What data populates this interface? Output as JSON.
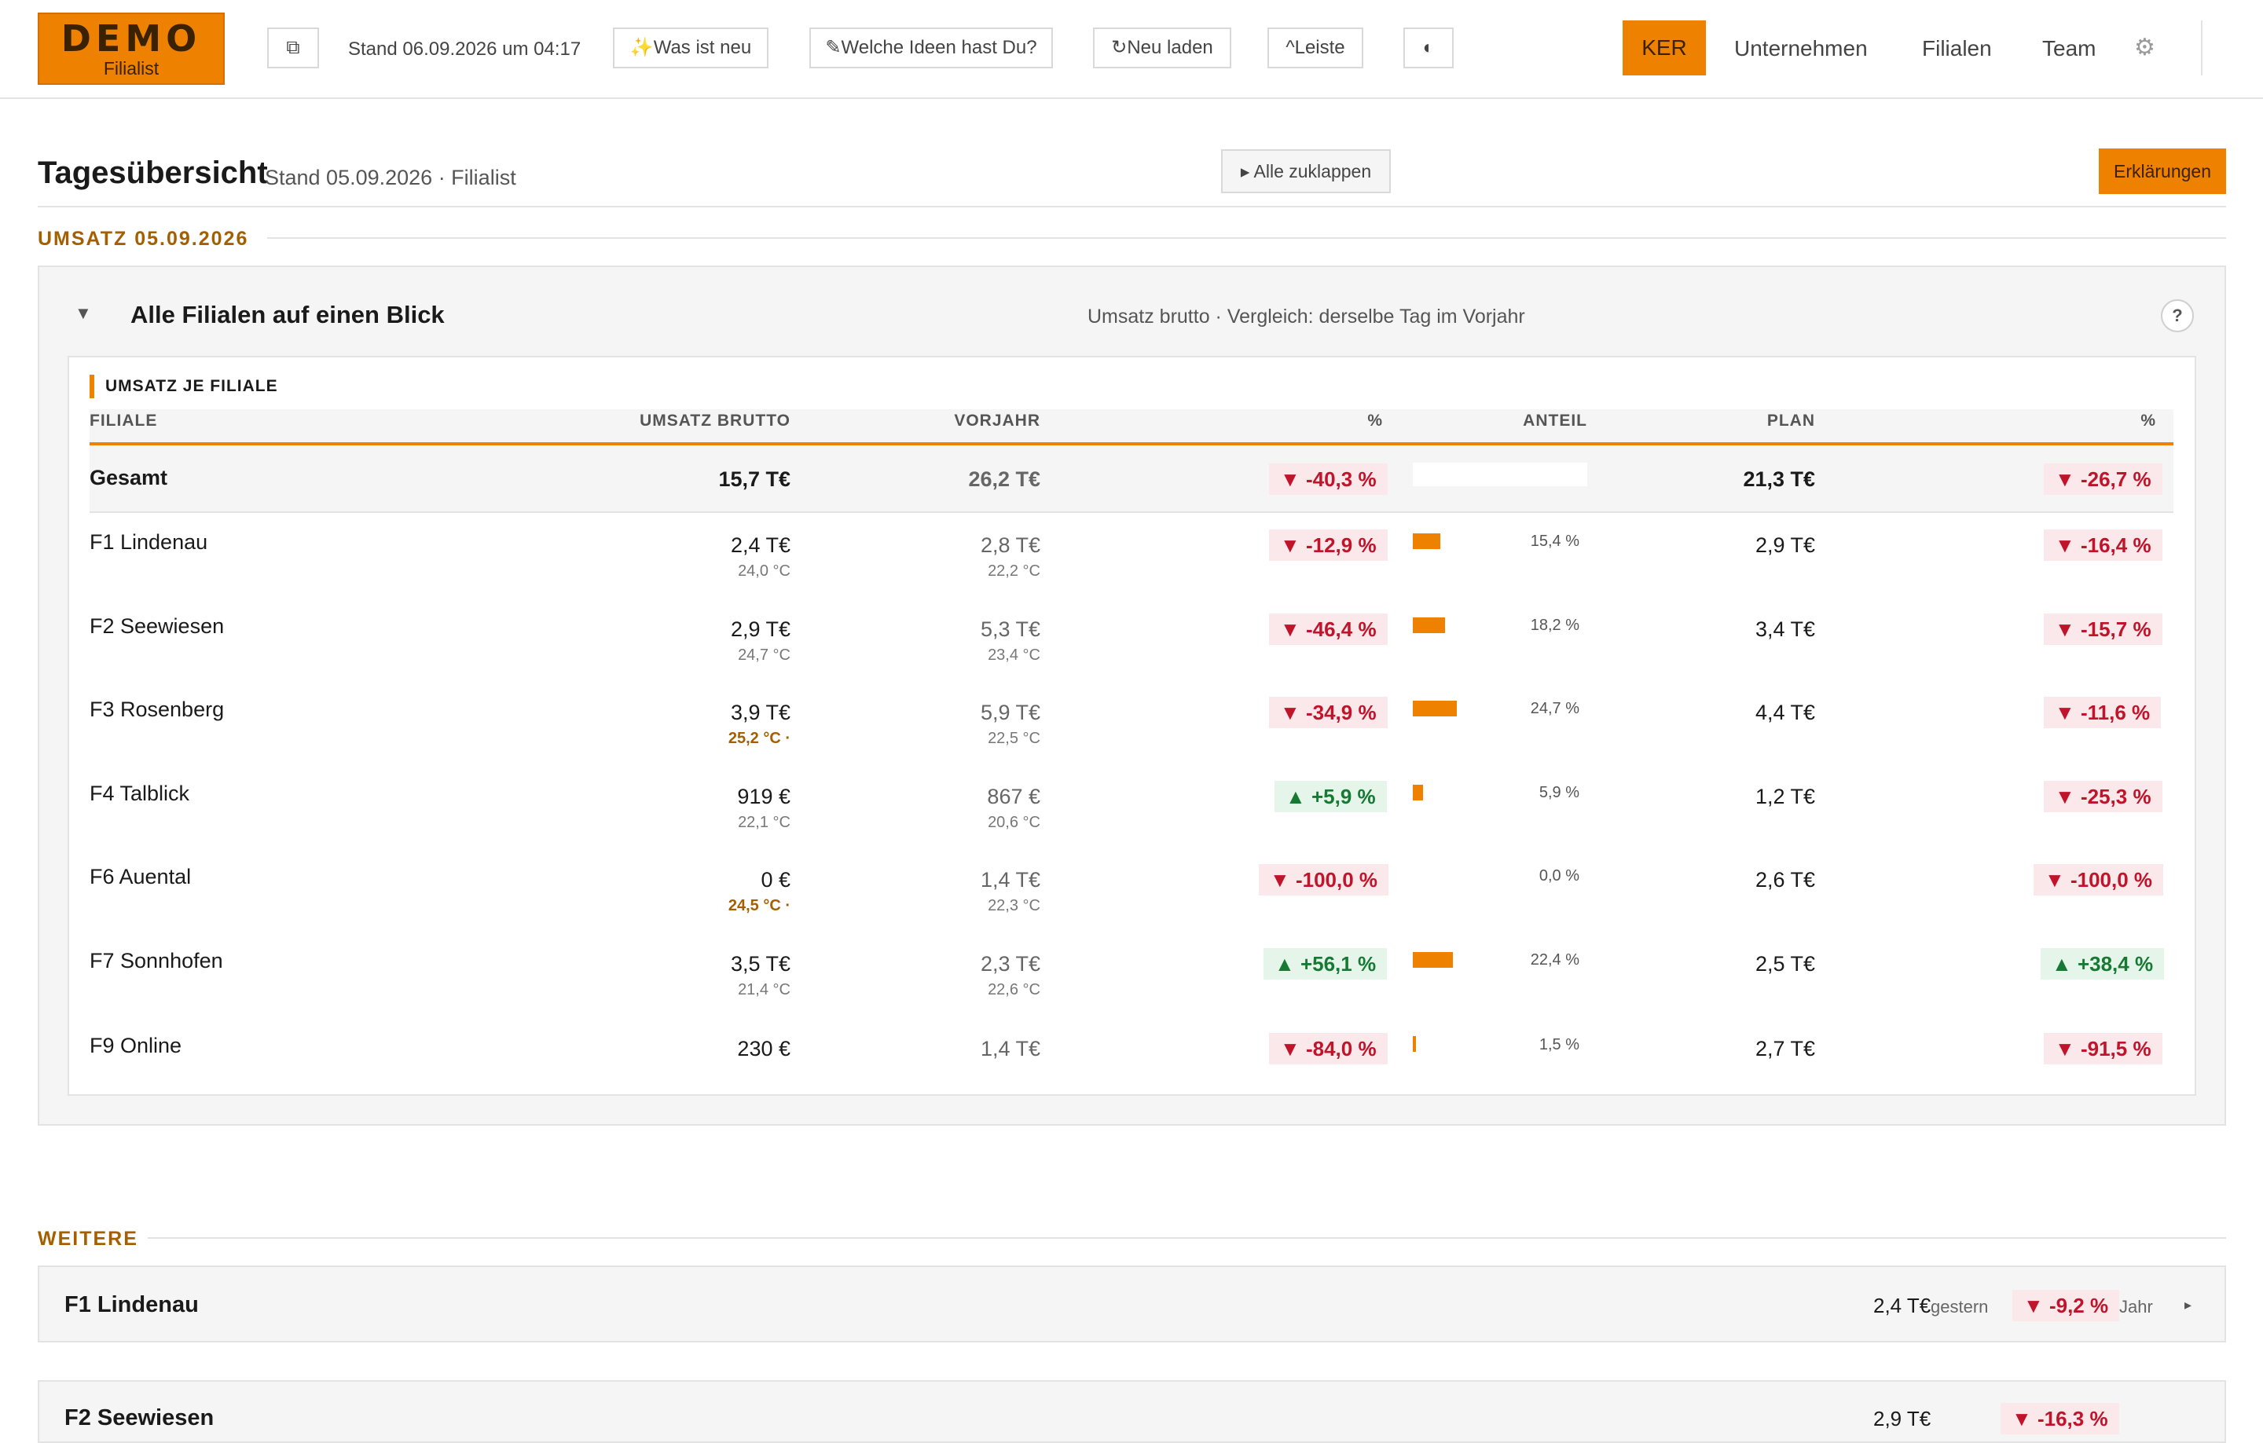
{
  "header": {
    "logo": {
      "line1": "DEMO",
      "line2": "Filialist"
    },
    "copy_icon": "⧉",
    "stand": "Stand 06.09.2026 um 04:17",
    "buttons": {
      "whats_new": "✨Was ist neu",
      "ideas": "✎Welche Ideen hast Du?",
      "reload": "↻Neu laden",
      "bar": "^Leiste",
      "theme": "◐"
    },
    "nav": {
      "ker": "KER",
      "company": "Unternehmen",
      "branches": "Filialen",
      "team": "Team"
    },
    "gear": "⚙"
  },
  "page": {
    "title": "Tagesübersicht",
    "subtitle": "Stand 05.09.2026 · Filialist",
    "collapse_all": "▸ Alle zuklappen",
    "explanations": "Erklärungen"
  },
  "section_revenue": "UMSATZ 05.09.2026",
  "panel": {
    "chevron": "▼",
    "title": "Alle Filialen auf einen Blick",
    "subtitle": "Umsatz brutto · Vergleich: derselbe Tag im Vorjahr",
    "help": "?",
    "card_label": "UMSATZ JE FILIALE",
    "columns": {
      "branch": "FILIALE",
      "revenue": "UMSATZ BRUTTO",
      "prev_year": "VORJAHR",
      "pct1": "%",
      "share": "ANTEIL",
      "plan": "PLAN",
      "pct2": "%"
    },
    "total": {
      "name": "Gesamt",
      "revenue": "15,7 T€",
      "prev": "26,2 T€",
      "pct_prev": "▼ -40,3 %",
      "plan": "21,3 T€",
      "pct_plan": "▼ -26,7 %"
    },
    "rows": [
      {
        "name": "F1 Lindenau",
        "revenue": "2,4 T€",
        "temp": "24,0 °C",
        "prev": "2,8 T€",
        "prev_temp": "22,2 °C",
        "pct_prev": "▼ -12,9 %",
        "share": "15,4 %",
        "share_value": 15.4,
        "plan": "2,9 T€",
        "pct_plan": "▼ -16,4 %"
      },
      {
        "name": "F2 Seewiesen",
        "revenue": "2,9 T€",
        "temp": "24,7 °C",
        "prev": "5,3 T€",
        "prev_temp": "23,4 °C",
        "pct_prev": "▼ -46,4 %",
        "share": "18,2 %",
        "share_value": 18.2,
        "plan": "3,4 T€",
        "pct_plan": "▼ -15,7 %"
      },
      {
        "name": "F3 Rosenberg",
        "revenue": "3,9 T€",
        "temp": "25,2 °C ·",
        "prev": "5,9 T€",
        "prev_temp": "22,5 °C",
        "pct_prev": "▼ -34,9 %",
        "share": "24,7 %",
        "share_value": 24.7,
        "plan": "4,4 T€",
        "pct_plan": "▼ -11,6 %"
      },
      {
        "name": "F4 Talblick",
        "revenue": "919 €",
        "temp": "22,1 °C",
        "prev": "867 €",
        "prev_temp": "20,6 °C",
        "pct_prev": "▲ +5,9 %",
        "share": "5,9 %",
        "share_value": 5.9,
        "plan": "1,2 T€",
        "pct_plan": "▼ -25,3 %"
      },
      {
        "name": "F6 Auental",
        "revenue": "0 €",
        "temp": "24,5 °C ·",
        "prev": "1,4 T€",
        "prev_temp": "22,3 °C",
        "pct_prev": "▼ -100,0 %",
        "share": "0,0 %",
        "share_value": 0.0,
        "plan": "2,6 T€",
        "pct_plan": "▼ -100,0 %"
      },
      {
        "name": "F7 Sonnhofen",
        "revenue": "3,5 T€",
        "temp": "21,4 °C",
        "prev": "2,3 T€",
        "prev_temp": "22,6 °C",
        "pct_prev": "▲ +56,1 %",
        "share": "22,4 %",
        "share_value": 22.4,
        "plan": "2,5 T€",
        "pct_plan": "▲ +38,4 %"
      },
      {
        "name": "F9 Online",
        "revenue": "230 €",
        "temp": "",
        "prev": "1,4 T€",
        "prev_temp": "",
        "pct_prev": "▼ -84,0 %",
        "share": "1,5 %",
        "share_value": 1.5,
        "plan": "2,7 T€",
        "pct_plan": "▼ -91,5 %"
      }
    ]
  },
  "section_more": "WEITERE",
  "more_cards": [
    {
      "name": "F1 Lindenau",
      "value": "2,4 T€",
      "unit": "gestern",
      "pct": "▼ -9,2 %",
      "period": "Jahr",
      "arrow": "▸"
    },
    {
      "name": "F2 Seewiesen",
      "value": "2,9 T€",
      "unit": "",
      "pct": "▼ -16,3 %",
      "period": "",
      "arrow": ""
    }
  ],
  "colors": {
    "accent": "#ef8100",
    "negative": "#c0142b",
    "positive": "#177a34"
  }
}
